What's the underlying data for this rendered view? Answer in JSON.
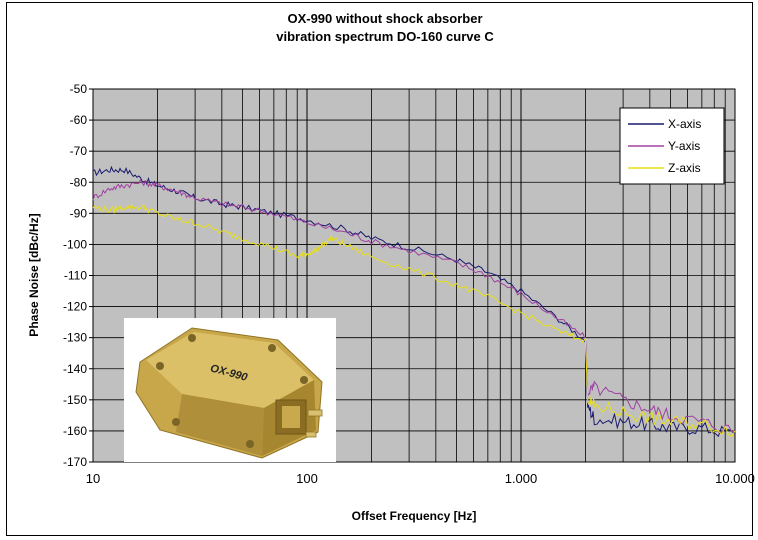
{
  "chart_data": {
    "type": "line",
    "title": "OX-990 without shock absorber",
    "subtitle": "vibration spectrum DO-160 curve C",
    "xlabel": "Offset Frequency [Hz]",
    "ylabel": "Phase Noise [dBc/Hz]",
    "xscale": "log",
    "xlim": [
      10,
      10000
    ],
    "ylim": [
      -170,
      -50
    ],
    "x_tick_labels": [
      "10",
      "100",
      "1.000",
      "10.000"
    ],
    "y_ticks": [
      -50,
      -60,
      -70,
      -80,
      -90,
      -100,
      -110,
      -120,
      -130,
      -140,
      -150,
      -160,
      -170
    ],
    "grid": true,
    "legend_position": "top-right",
    "series": [
      {
        "name": "X-axis",
        "color": "#1a1a6e",
        "x": [
          10,
          12,
          14,
          17,
          20,
          25,
          30,
          40,
          50,
          70,
          100,
          150,
          200,
          300,
          500,
          700,
          1000,
          1500,
          2000,
          2050,
          2200,
          3000,
          4000,
          5000,
          7000,
          10000
        ],
        "y": [
          -77,
          -76,
          -76,
          -79,
          -81,
          -83,
          -85,
          -87,
          -88,
          -90,
          -92,
          -95,
          -98,
          -101,
          -105,
          -109,
          -115,
          -124,
          -131,
          -152,
          -156,
          -157,
          -158,
          -159,
          -159,
          -161
        ]
      },
      {
        "name": "Y-axis",
        "color": "#a040a0",
        "x": [
          10,
          12,
          14,
          17,
          20,
          25,
          30,
          40,
          50,
          70,
          100,
          150,
          200,
          300,
          500,
          700,
          1000,
          1500,
          2000,
          2050,
          2200,
          3000,
          4000,
          5000,
          7000,
          10000
        ],
        "y": [
          -85,
          -82,
          -81,
          -80,
          -81,
          -83,
          -85,
          -87,
          -88,
          -90,
          -93,
          -96,
          -99,
          -102,
          -106,
          -110,
          -116,
          -124,
          -130,
          -148,
          -146,
          -150,
          -153,
          -155,
          -157,
          -160
        ]
      },
      {
        "name": "Z-axis",
        "color": "#e8e010",
        "x": [
          10,
          12,
          14,
          17,
          20,
          25,
          30,
          40,
          50,
          70,
          90,
          100,
          110,
          130,
          150,
          200,
          300,
          500,
          700,
          1000,
          1500,
          2000,
          2050,
          2200,
          3000,
          4000,
          5000,
          7000,
          10000
        ],
        "y": [
          -88,
          -89,
          -88,
          -88,
          -90,
          -92,
          -93,
          -96,
          -98,
          -101,
          -104,
          -103,
          -102,
          -98,
          -100,
          -104,
          -108,
          -113,
          -117,
          -122,
          -128,
          -131,
          -150,
          -152,
          -154,
          -156,
          -157,
          -158,
          -160
        ]
      }
    ]
  },
  "photo": {
    "label": "OX-990"
  },
  "colors": {
    "plot_bg": "#c0c0c0",
    "grid": "#000000"
  }
}
